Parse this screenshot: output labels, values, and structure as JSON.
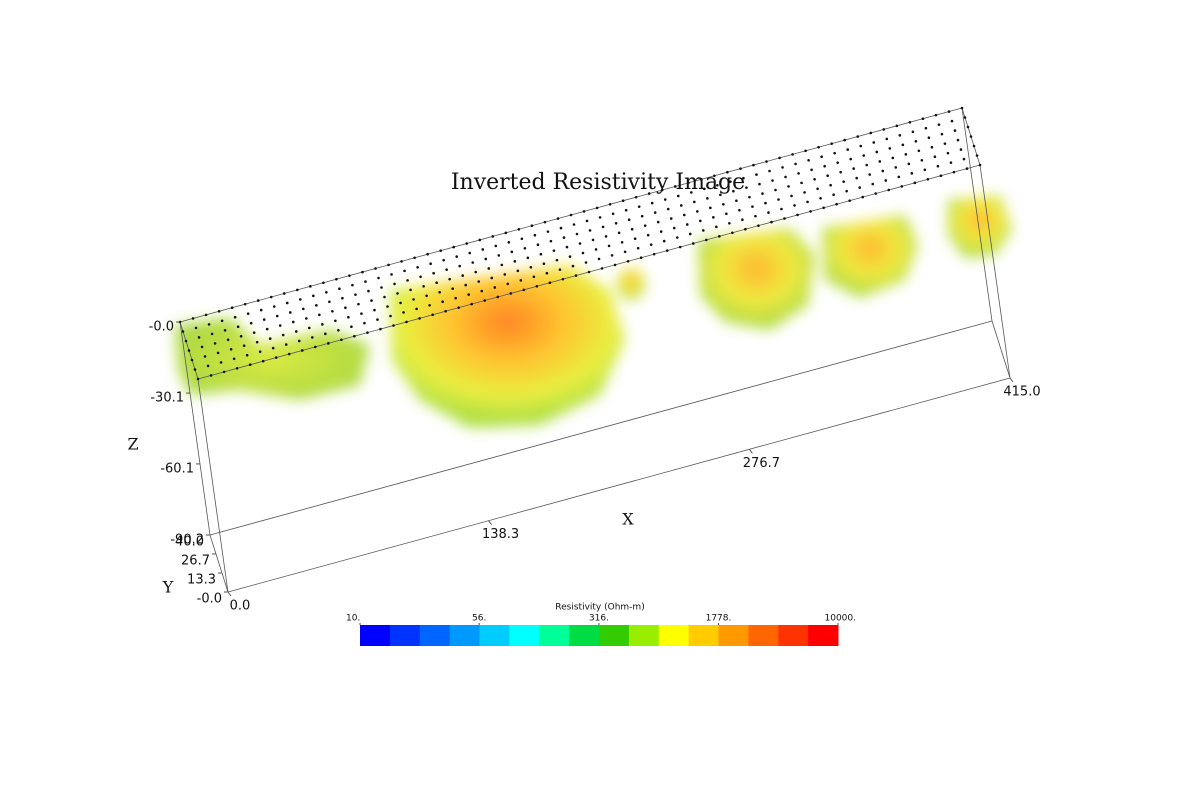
{
  "chart_data": {
    "type": "volume",
    "title": "Inverted Resistivity Image",
    "x_label": "X",
    "y_label": "Y",
    "z_label": "Z",
    "xlim": [
      0,
      415
    ],
    "ylim": [
      0,
      40
    ],
    "zlim": [
      -90.2,
      0
    ],
    "xticks": [
      {
        "value": 0,
        "label": "0.0"
      },
      138.3,
      276.7,
      {
        "value": 415,
        "label": "415.0"
      }
    ],
    "yticks": [
      {
        "value": 0,
        "label": "-0.0"
      },
      13.3,
      26.7,
      {
        "value": 40,
        "label": "40.0"
      }
    ],
    "zticks": [
      {
        "value": 0,
        "label": "-0.0"
      },
      -30.1,
      -60.1,
      -90.2
    ],
    "colorbar": {
      "label": "Resistivity (Ohm-m)",
      "clim": [
        10,
        10000
      ],
      "log_scale": true,
      "ticks": [
        {
          "value": 10,
          "label": "10."
        },
        {
          "value": 56,
          "label": "56."
        },
        {
          "value": 316,
          "label": "316."
        },
        {
          "value": 1778,
          "label": "1778."
        },
        {
          "value": 10000,
          "label": "10000."
        }
      ],
      "colors": [
        "#0000ff",
        "#0033ff",
        "#0066ff",
        "#0099ff",
        "#00ccff",
        "#00ffff",
        "#00ff99",
        "#00dd44",
        "#33cc00",
        "#99ee00",
        "#ffff00",
        "#ffcc00",
        "#ff9900",
        "#ff6600",
        "#ff3300",
        "#ff0000"
      ]
    }
  }
}
